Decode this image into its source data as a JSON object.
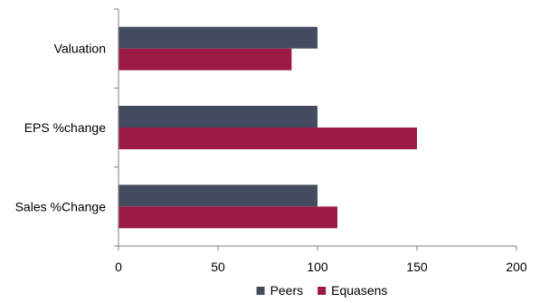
{
  "chart_data": {
    "type": "bar",
    "orientation": "horizontal",
    "categories": [
      "Valuation",
      "EPS %change",
      "Sales %Change"
    ],
    "series": [
      {
        "name": "Peers",
        "values": [
          100,
          100,
          100
        ]
      },
      {
        "name": "Equasens",
        "values": [
          87,
          150,
          110
        ]
      }
    ],
    "xlim": [
      0,
      200
    ],
    "x_ticks": [
      0,
      50,
      100,
      150,
      200
    ],
    "title": "",
    "xlabel": "",
    "ylabel": "",
    "grid": false,
    "legend_position": "bottom"
  },
  "colors": {
    "Peers": "#434b5e",
    "Equasens": "#9b1b45",
    "axis": "#7f7f7f"
  }
}
